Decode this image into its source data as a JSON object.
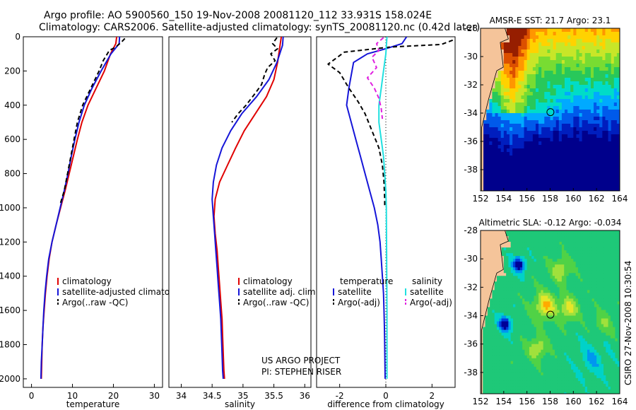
{
  "header": {
    "line1": "Argo profile: AO 5900560_150 19-Nov-2008 20081120_112 33.931S 158.024E",
    "line2": "Climatology: CARS2006. Satellite-adjusted climatology: synTS_20081120.nc (0.42d later)"
  },
  "side_label": "CSIRO 27-Nov-2008 10:30:54",
  "project_note": [
    "US ARGO PROJECT",
    "PI: STEPHEN RISER"
  ],
  "colors": {
    "climatology": "#e00000",
    "satellite": "#1515d8",
    "argo": "#000000",
    "satellite_salinity": "#20e0e0",
    "argo_salinity": "#e020e0",
    "land": "#f5c49a"
  },
  "chart_data": [
    {
      "type": "line",
      "id": "temperature",
      "xlabel": "temperature",
      "xlim": [
        -2,
        32
      ],
      "ylim": [
        2050,
        0
      ],
      "xticks": [
        0,
        10,
        20,
        30
      ],
      "yticks": [
        0,
        200,
        400,
        600,
        800,
        1000,
        1200,
        1400,
        1600,
        1800,
        2000
      ],
      "legend": [
        "climatology",
        "satellite-adjusted climatology",
        "Argo(..raw -QC)"
      ],
      "series": [
        {
          "name": "climatology",
          "color": "#e00000",
          "dash": "",
          "points": [
            [
              20.8,
              0
            ],
            [
              20.6,
              40
            ],
            [
              19.3,
              100
            ],
            [
              17.8,
              200
            ],
            [
              15.8,
              300
            ],
            [
              13.8,
              400
            ],
            [
              12.3,
              500
            ],
            [
              11.2,
              600
            ],
            [
              10.2,
              700
            ],
            [
              9.2,
              800
            ],
            [
              8.2,
              900
            ],
            [
              7.1,
              1000
            ],
            [
              6.0,
              1100
            ],
            [
              5.0,
              1200
            ],
            [
              4.3,
              1300
            ],
            [
              3.8,
              1400
            ],
            [
              3.4,
              1500
            ],
            [
              3.1,
              1600
            ],
            [
              2.8,
              1700
            ],
            [
              2.6,
              1800
            ],
            [
              2.5,
              1900
            ],
            [
              2.4,
              2000
            ]
          ]
        },
        {
          "name": "satellite-adjusted climatology",
          "color": "#1515d8",
          "dash": "",
          "points": [
            [
              21.5,
              0
            ],
            [
              21.4,
              40
            ],
            [
              19.4,
              100
            ],
            [
              17.0,
              200
            ],
            [
              14.8,
              300
            ],
            [
              12.9,
              400
            ],
            [
              11.6,
              500
            ],
            [
              10.6,
              600
            ],
            [
              9.7,
              700
            ],
            [
              8.9,
              800
            ],
            [
              8.0,
              900
            ],
            [
              7.0,
              1000
            ],
            [
              6.0,
              1100
            ],
            [
              5.0,
              1200
            ],
            [
              4.2,
              1300
            ],
            [
              3.7,
              1400
            ],
            [
              3.3,
              1500
            ],
            [
              3.0,
              1600
            ],
            [
              2.8,
              1700
            ],
            [
              2.6,
              1800
            ],
            [
              2.4,
              1900
            ],
            [
              2.3,
              2000
            ]
          ]
        },
        {
          "name": "Argo(..raw -QC)",
          "color": "#000000",
          "dash": "6,4",
          "points": [
            [
              22.8,
              10
            ],
            [
              22.0,
              30
            ],
            [
              20.6,
              60
            ],
            [
              19.0,
              80
            ],
            [
              17.5,
              140
            ],
            [
              16.5,
              200
            ],
            [
              14.5,
              300
            ],
            [
              12.5,
              400
            ],
            [
              11.2,
              500
            ],
            [
              10.4,
              600
            ],
            [
              9.6,
              700
            ],
            [
              8.8,
              800
            ],
            [
              8.0,
              900
            ],
            [
              7.0,
              980
            ]
          ]
        }
      ]
    },
    {
      "type": "line",
      "id": "salinity",
      "xlabel": "salinity",
      "xlim": [
        33.8,
        36.1
      ],
      "ylim": [
        2050,
        0
      ],
      "xticks": [
        34,
        34.5,
        35,
        35.5,
        36
      ],
      "legend": [
        "climatology",
        "satellite adj. clim.",
        "Argo(..raw -QC)"
      ],
      "series": [
        {
          "name": "climatology",
          "color": "#e00000",
          "dash": "",
          "points": [
            [
              35.62,
              0
            ],
            [
              35.6,
              50
            ],
            [
              35.56,
              150
            ],
            [
              35.5,
              250
            ],
            [
              35.38,
              350
            ],
            [
              35.2,
              450
            ],
            [
              35.02,
              550
            ],
            [
              34.88,
              650
            ],
            [
              34.75,
              750
            ],
            [
              34.62,
              850
            ],
            [
              34.55,
              950
            ],
            [
              34.53,
              1050
            ],
            [
              34.55,
              1150
            ],
            [
              34.58,
              1250
            ],
            [
              34.6,
              1350
            ],
            [
              34.62,
              1450
            ],
            [
              34.64,
              1550
            ],
            [
              34.66,
              1650
            ],
            [
              34.67,
              1750
            ],
            [
              34.68,
              1850
            ],
            [
              34.69,
              1950
            ],
            [
              34.7,
              2000
            ]
          ]
        },
        {
          "name": "satellite adj. clim.",
          "color": "#1515d8",
          "dash": "",
          "points": [
            [
              35.65,
              0
            ],
            [
              35.64,
              50
            ],
            [
              35.55,
              150
            ],
            [
              35.42,
              250
            ],
            [
              35.22,
              350
            ],
            [
              34.98,
              450
            ],
            [
              34.8,
              550
            ],
            [
              34.66,
              650
            ],
            [
              34.57,
              750
            ],
            [
              34.52,
              850
            ],
            [
              34.5,
              950
            ],
            [
              34.52,
              1050
            ],
            [
              34.54,
              1150
            ],
            [
              34.56,
              1250
            ],
            [
              34.58,
              1350
            ],
            [
              34.6,
              1450
            ],
            [
              34.62,
              1550
            ],
            [
              34.64,
              1650
            ],
            [
              34.65,
              1750
            ],
            [
              34.66,
              1850
            ],
            [
              34.67,
              1950
            ],
            [
              34.68,
              2000
            ]
          ]
        },
        {
          "name": "Argo(..raw -QC)",
          "color": "#000000",
          "dash": "6,4",
          "points": [
            [
              35.55,
              5
            ],
            [
              35.48,
              40
            ],
            [
              35.56,
              70
            ],
            [
              35.45,
              100
            ],
            [
              35.52,
              140
            ],
            [
              35.4,
              180
            ],
            [
              35.35,
              220
            ],
            [
              35.3,
              280
            ],
            [
              35.2,
              330
            ],
            [
              35.05,
              400
            ],
            [
              34.92,
              450
            ],
            [
              34.82,
              500
            ]
          ]
        }
      ]
    },
    {
      "type": "line",
      "id": "difference",
      "xlabel": "difference from climatology",
      "xlim": [
        -3.0,
        3.0
      ],
      "ylim": [
        2050,
        0
      ],
      "xticks": [
        -2,
        0,
        2
      ],
      "legend_title_left": "temperature",
      "legend_title_right": "salinity",
      "legend": [
        "satellite",
        "Argo(-adj)",
        "satellite",
        "Argo(-adj)"
      ],
      "series": [
        {
          "name": "satellite",
          "group": "temperature",
          "color": "#1515d8",
          "dash": "",
          "points": [
            [
              0.9,
              0
            ],
            [
              0.7,
              40
            ],
            [
              0,
              70
            ],
            [
              -0.8,
              100
            ],
            [
              -1.4,
              150
            ],
            [
              -1.6,
              300
            ],
            [
              -1.7,
              400
            ],
            [
              -1.5,
              500
            ],
            [
              -1.3,
              600
            ],
            [
              -1.1,
              700
            ],
            [
              -0.9,
              800
            ],
            [
              -0.7,
              900
            ],
            [
              -0.5,
              1000
            ],
            [
              -0.35,
              1100
            ],
            [
              -0.25,
              1200
            ],
            [
              -0.2,
              1300
            ],
            [
              -0.15,
              1400
            ],
            [
              -0.1,
              1500
            ],
            [
              -0.08,
              1600
            ],
            [
              -0.06,
              1700
            ],
            [
              -0.05,
              1800
            ],
            [
              -0.04,
              1900
            ],
            [
              -0.03,
              2000
            ]
          ]
        },
        {
          "name": "Argo(-adj)",
          "group": "temperature",
          "color": "#000000",
          "dash": "6,4",
          "points": [
            [
              2.9,
              20
            ],
            [
              2.4,
              45
            ],
            [
              0.2,
              60
            ],
            [
              -1.8,
              90
            ],
            [
              -2.5,
              160
            ],
            [
              -2.0,
              210
            ],
            [
              -1.6,
              300
            ],
            [
              -1.2,
              380
            ],
            [
              -0.9,
              450
            ],
            [
              -0.6,
              550
            ],
            [
              -0.3,
              650
            ],
            [
              -0.15,
              750
            ],
            [
              -0.08,
              850
            ],
            [
              -0.05,
              950
            ],
            [
              -0.05,
              990
            ]
          ]
        },
        {
          "name": "satellite",
          "group": "salinity",
          "color": "#20e0e0",
          "dash": "",
          "points": [
            [
              0.05,
              0
            ],
            [
              0,
              100
            ],
            [
              -0.1,
              200
            ],
            [
              -0.2,
              300
            ],
            [
              -0.3,
              400
            ],
            [
              -0.3,
              500
            ],
            [
              -0.2,
              600
            ],
            [
              -0.1,
              700
            ],
            [
              -0.05,
              800
            ],
            [
              0,
              900
            ],
            [
              0.02,
              1000
            ],
            [
              0.03,
              1200
            ],
            [
              0.04,
              1400
            ],
            [
              0.05,
              1600
            ],
            [
              0.05,
              1800
            ],
            [
              0.05,
              2000
            ]
          ]
        },
        {
          "name": "Argo(-adj)",
          "group": "salinity",
          "color": "#e020e0",
          "dash": "6,4",
          "points": [
            [
              -0.1,
              5
            ],
            [
              -0.4,
              40
            ],
            [
              -0.3,
              80
            ],
            [
              -0.6,
              120
            ],
            [
              -0.4,
              180
            ],
            [
              -0.8,
              240
            ],
            [
              -0.5,
              300
            ],
            [
              -0.3,
              360
            ],
            [
              -0.2,
              420
            ],
            [
              -0.15,
              480
            ]
          ]
        }
      ]
    },
    {
      "type": "heatmap",
      "id": "sst_map",
      "title": "AMSR-E SST: 21.7 Argo: 23.1",
      "xlim": [
        152,
        164
      ],
      "ylim": [
        -39.5,
        -28
      ],
      "xticks": [
        152,
        154,
        156,
        158,
        160,
        162,
        164
      ],
      "yticks": [
        -28,
        -30,
        -32,
        -34,
        -36,
        -38
      ],
      "float_position": [
        158.024,
        -33.931
      ]
    },
    {
      "type": "heatmap",
      "id": "sla_map",
      "title": "Altimetric SLA: -0.12 Argo: -0.034",
      "xlim": [
        152,
        164
      ],
      "ylim": [
        -39.5,
        -28
      ],
      "xticks": [
        152,
        154,
        156,
        158,
        160,
        162,
        164
      ],
      "yticks": [
        -28,
        -30,
        -32,
        -34,
        -36,
        -38
      ],
      "float_position": [
        158.024,
        -33.931
      ]
    }
  ]
}
